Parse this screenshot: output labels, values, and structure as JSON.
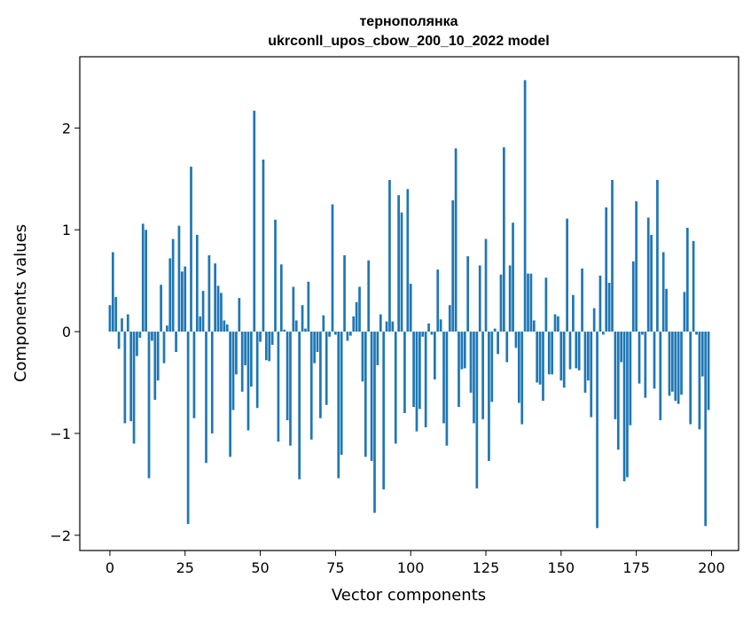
{
  "chart_data": {
    "type": "bar",
    "title": "тернополянка",
    "subtitle": "ukrconll_upos_cbow_200_10_2022 model",
    "xlabel": "Vector components",
    "ylabel": "Components values",
    "xlim": [
      -10,
      209
    ],
    "ylim": [
      -2.15,
      2.7
    ],
    "xticks": [
      0,
      25,
      50,
      75,
      100,
      125,
      150,
      175,
      200
    ],
    "yticks": [
      -2,
      -1,
      0,
      1,
      2
    ],
    "xtick_labels": [
      "0",
      "25",
      "50",
      "75",
      "100",
      "125",
      "150",
      "175",
      "200"
    ],
    "ytick_labels": [
      "−2",
      "−1",
      "0",
      "1",
      "2"
    ],
    "grid": false,
    "bar_color": "#1f77b4",
    "values": [
      0.26,
      0.78,
      0.34,
      -0.17,
      0.13,
      -0.9,
      0.17,
      -0.88,
      -1.1,
      -0.24,
      -0.06,
      1.06,
      1.0,
      -1.44,
      -0.09,
      -0.67,
      -0.48,
      0.46,
      -0.31,
      0.06,
      0.72,
      0.91,
      -0.2,
      1.04,
      0.59,
      0.64,
      -1.89,
      1.62,
      -0.85,
      0.95,
      0.15,
      0.4,
      -1.29,
      0.75,
      -1.0,
      0.67,
      0.45,
      0.38,
      0.11,
      0.07,
      -1.23,
      -0.77,
      -0.42,
      0.33,
      -0.59,
      -0.33,
      -0.97,
      -0.54,
      2.17,
      -0.75,
      -0.1,
      1.69,
      -0.28,
      -0.29,
      -0.13,
      1.1,
      -1.08,
      0.66,
      0.02,
      -0.87,
      -1.12,
      0.44,
      0.11,
      -1.45,
      0.26,
      0.03,
      0.49,
      -1.06,
      -0.31,
      -0.2,
      -0.85,
      0.16,
      -0.72,
      -0.05,
      1.25,
      -0.03,
      -1.44,
      -1.21,
      0.75,
      -0.09,
      -0.04,
      0.15,
      0.29,
      0.44,
      -0.49,
      -1.23,
      0.7,
      -1.27,
      -1.78,
      -0.33,
      0.17,
      -1.55,
      0.1,
      1.49,
      0.1,
      -1.1,
      1.34,
      1.17,
      -0.8,
      1.4,
      0.47,
      -0.74,
      -0.98,
      -0.76,
      -0.05,
      -0.94,
      0.08,
      -0.03,
      -0.47,
      0.61,
      0.12,
      -0.9,
      -1.12,
      0.26,
      1.29,
      1.8,
      -0.74,
      -0.37,
      -0.36,
      0.74,
      -0.6,
      -0.9,
      -1.54,
      0.65,
      -0.86,
      0.91,
      -1.27,
      -0.69,
      0.03,
      -0.22,
      0.56,
      1.81,
      -0.3,
      0.65,
      1.07,
      -0.16,
      -0.7,
      -0.91,
      2.47,
      0.57,
      0.57,
      0.11,
      -0.5,
      -0.52,
      -0.68,
      0.53,
      -0.42,
      -0.42,
      0.17,
      0.15,
      -0.48,
      -0.55,
      1.11,
      -0.37,
      0.36,
      -0.36,
      -0.38,
      0.62,
      -0.6,
      -0.48,
      -0.84,
      0.23,
      -1.93,
      0.55,
      -0.03,
      1.22,
      0.48,
      1.49,
      -0.86,
      -1.16,
      -0.3,
      -1.47,
      -1.43,
      -0.92,
      0.69,
      1.28,
      -0.51,
      -0.03,
      -0.65,
      1.12,
      0.95,
      -0.56,
      1.49,
      -0.87,
      0.78,
      0.42,
      -0.63,
      -0.59,
      -0.68,
      -0.71,
      -0.62,
      0.39,
      1.02,
      -0.91,
      0.89,
      -0.03,
      -0.96,
      -0.44,
      -1.91,
      -0.77
    ]
  }
}
